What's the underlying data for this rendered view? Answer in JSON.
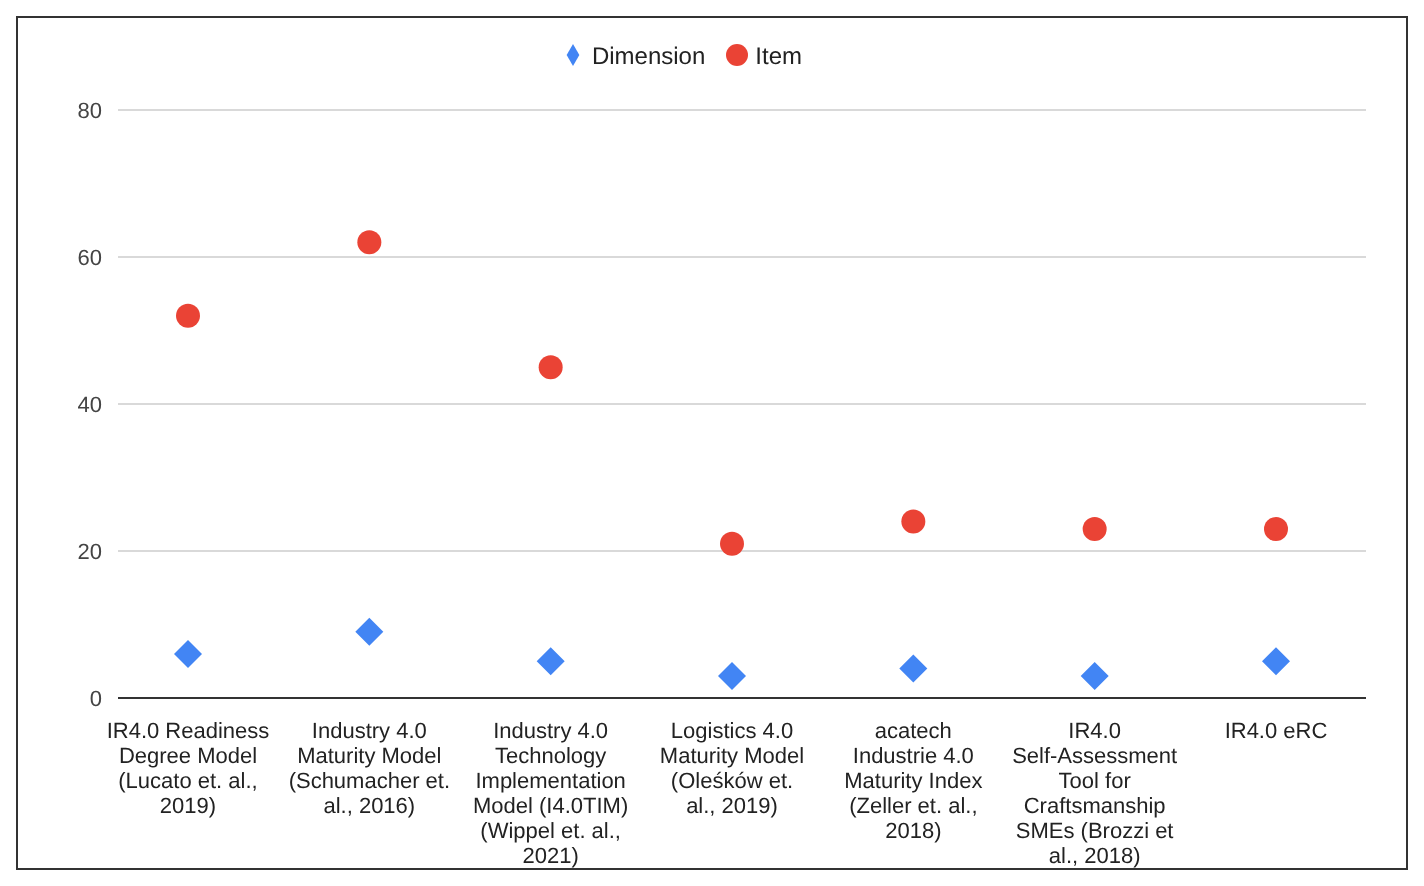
{
  "chart_data": {
    "type": "scatter",
    "categories": [
      "IR4.0 Readiness Degree Model (Lucato et. al., 2019)",
      "Industry 4.0 Maturity Model (Schumacher et. al., 2016)",
      "Industry 4.0 Technology Implementation Model (I4.0TIM) (Wippel et. al., 2021)",
      "Logistics 4.0 Maturity Model (Oleśków et. al., 2019)",
      "acatech Industrie 4.0 Maturity Index (Zeller et. al., 2018)",
      "IR4.0 Self-Assessment Tool for Craftsmanship SMEs (Brozzi et al., 2018)",
      "IR4.0 eRC"
    ],
    "series": [
      {
        "name": "Dimension",
        "color": "#4285f4",
        "marker": "diamond",
        "values": [
          6,
          9,
          5,
          3,
          4,
          3,
          5
        ]
      },
      {
        "name": "Item",
        "color": "#ea4335",
        "marker": "circle",
        "values": [
          52,
          62,
          45,
          21,
          24,
          23,
          23
        ]
      }
    ],
    "ylim": [
      0,
      80
    ],
    "yticks": [
      0,
      20,
      40,
      60,
      80
    ],
    "grid": "y",
    "legend": "top"
  }
}
